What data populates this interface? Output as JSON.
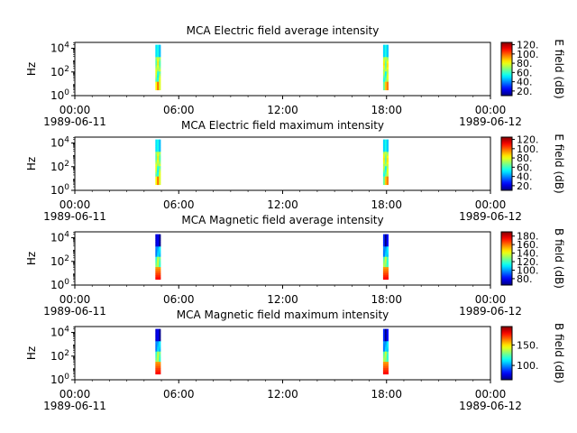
{
  "figure": {
    "panel_titles": [
      "MCA  Electric field average intensity",
      "MCA  Electric field maximum intensity",
      "MCA  Magnetic field average intensity",
      "MCA  Magnetic field maximum intensity"
    ]
  },
  "chart_data": [
    {
      "type": "heatmap",
      "title": "MCA  Electric field average intensity",
      "ylabel": "Hz",
      "y_scale": "log",
      "y_ticks": [
        {
          "value": 1,
          "label": "10",
          "exp": "0"
        },
        {
          "value": 100,
          "label": "10",
          "exp": "2"
        },
        {
          "value": 10000,
          "label": "10",
          "exp": "4"
        }
      ],
      "y_range": [
        1,
        31623
      ],
      "x_ticks": [
        "00:00",
        "06:00",
        "12:00",
        "18:00",
        "00:00"
      ],
      "x_tick_hours": [
        0,
        6,
        12,
        18,
        24
      ],
      "x_date_labels": [
        "1989-06-11",
        "1989-06-12"
      ],
      "x_range_hours": [
        0,
        24
      ],
      "colorbar": {
        "label": "E field (dB)",
        "ticks": [
          20,
          40,
          60,
          80,
          100,
          120
        ],
        "tick_labels": [
          "20.",
          "40.",
          "60.",
          "80.",
          "100.",
          "120."
        ],
        "range": [
          10,
          125
        ]
      },
      "data_blocks": [
        {
          "x_range_hours": [
            4.65,
            4.95
          ],
          "y_range": [
            3,
            20000
          ],
          "profile": "electric"
        },
        {
          "x_range_hours": [
            17.8,
            18.1
          ],
          "y_range": [
            3,
            20000
          ],
          "profile": "electric"
        }
      ]
    },
    {
      "type": "heatmap",
      "title": "MCA  Electric field maximum intensity",
      "ylabel": "Hz",
      "y_scale": "log",
      "y_ticks": [
        {
          "value": 1,
          "label": "10",
          "exp": "0"
        },
        {
          "value": 100,
          "label": "10",
          "exp": "2"
        },
        {
          "value": 10000,
          "label": "10",
          "exp": "4"
        }
      ],
      "y_range": [
        1,
        31623
      ],
      "x_ticks": [
        "00:00",
        "06:00",
        "12:00",
        "18:00",
        "00:00"
      ],
      "x_tick_hours": [
        0,
        6,
        12,
        18,
        24
      ],
      "x_date_labels": [
        "1989-06-11",
        "1989-06-12"
      ],
      "x_range_hours": [
        0,
        24
      ],
      "colorbar": {
        "label": "E field (dB)",
        "ticks": [
          20,
          40,
          60,
          80,
          100,
          120
        ],
        "tick_labels": [
          "20.",
          "40.",
          "60.",
          "80.",
          "100.",
          "120."
        ],
        "range": [
          10,
          125
        ]
      },
      "data_blocks": [
        {
          "x_range_hours": [
            4.65,
            4.95
          ],
          "y_range": [
            3,
            20000
          ],
          "profile": "electric"
        },
        {
          "x_range_hours": [
            17.8,
            18.1
          ],
          "y_range": [
            3,
            20000
          ],
          "profile": "electric"
        }
      ]
    },
    {
      "type": "heatmap",
      "title": "MCA  Magnetic field average intensity",
      "ylabel": "Hz",
      "y_scale": "log",
      "y_ticks": [
        {
          "value": 1,
          "label": "10",
          "exp": "0"
        },
        {
          "value": 100,
          "label": "10",
          "exp": "2"
        },
        {
          "value": 10000,
          "label": "10",
          "exp": "4"
        }
      ],
      "y_range": [
        1,
        31623
      ],
      "x_ticks": [
        "00:00",
        "06:00",
        "12:00",
        "18:00",
        "00:00"
      ],
      "x_tick_hours": [
        0,
        6,
        12,
        18,
        24
      ],
      "x_date_labels": [
        "1989-06-11",
        "1989-06-12"
      ],
      "x_range_hours": [
        0,
        24
      ],
      "colorbar": {
        "label": "B field (dB)",
        "ticks": [
          80,
          100,
          120,
          140,
          160,
          180
        ],
        "tick_labels": [
          "80.",
          "100.",
          "120.",
          "140.",
          "160.",
          "180."
        ],
        "range": [
          65,
          190
        ]
      },
      "data_blocks": [
        {
          "x_range_hours": [
            4.65,
            4.95
          ],
          "y_range": [
            3,
            20000
          ],
          "profile": "magnetic"
        },
        {
          "x_range_hours": [
            17.8,
            18.1
          ],
          "y_range": [
            3,
            20000
          ],
          "profile": "magnetic"
        }
      ]
    },
    {
      "type": "heatmap",
      "title": "MCA  Magnetic field maximum intensity",
      "ylabel": "Hz",
      "y_scale": "log",
      "y_ticks": [
        {
          "value": 1,
          "label": "10",
          "exp": "0"
        },
        {
          "value": 100,
          "label": "10",
          "exp": "2"
        },
        {
          "value": 10000,
          "label": "10",
          "exp": "4"
        }
      ],
      "y_range": [
        1,
        31623
      ],
      "x_ticks": [
        "00:00",
        "06:00",
        "12:00",
        "18:00",
        "00:00"
      ],
      "x_tick_hours": [
        0,
        6,
        12,
        18,
        24
      ],
      "x_date_labels": [
        "1989-06-11",
        "1989-06-12"
      ],
      "x_range_hours": [
        0,
        24
      ],
      "colorbar": {
        "label": "B field (dB)",
        "ticks": [
          100,
          150
        ],
        "tick_labels": [
          "100.",
          "150."
        ],
        "range": [
          65,
          195
        ]
      },
      "data_blocks": [
        {
          "x_range_hours": [
            4.65,
            4.95
          ],
          "y_range": [
            3,
            20000
          ],
          "profile": "magnetic"
        },
        {
          "x_range_hours": [
            17.8,
            18.1
          ],
          "y_range": [
            3,
            20000
          ],
          "profile": "magnetic"
        }
      ]
    }
  ]
}
